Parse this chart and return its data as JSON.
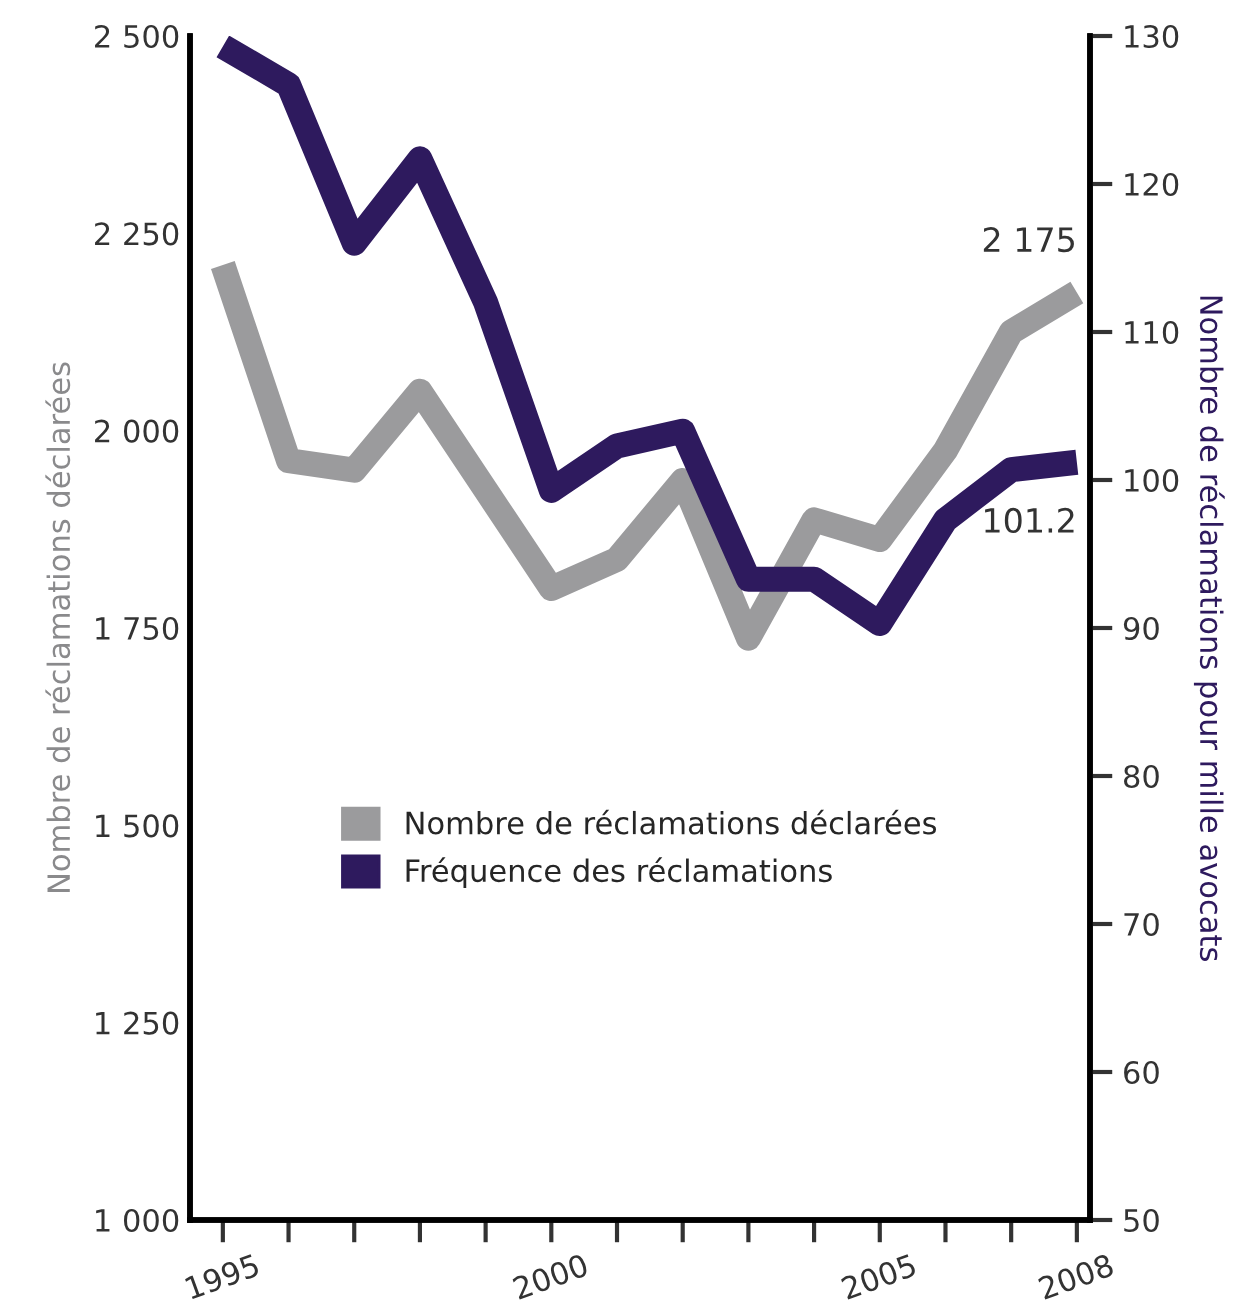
{
  "chart_data": {
    "type": "line",
    "x": [
      1995,
      1996,
      1997,
      1998,
      1999,
      2000,
      2001,
      2002,
      2003,
      2004,
      2005,
      2006,
      2007,
      2008
    ],
    "series": [
      {
        "name": "Nombre de réclamations déclarées",
        "color": "#9b9b9d",
        "values": [
          2210,
          1962,
          1950,
          2050,
          1925,
          1800,
          1837,
          1937,
          1737,
          1887,
          1862,
          1975,
          2125,
          2175
        ],
        "value_labels": [
          null,
          null,
          null,
          null,
          null,
          null,
          null,
          null,
          null,
          null,
          null,
          null,
          null,
          "2 175"
        ]
      },
      {
        "name": "Fréquence des réclamations",
        "color": "#2e1a5e",
        "axis": "y2",
        "values": [
          129.3,
          126.7,
          116,
          121.7,
          112,
          99.3,
          102.3,
          103.3,
          93.3,
          93.3,
          90.3,
          97.3,
          100.7,
          101.2
        ],
        "value_labels": [
          null,
          null,
          null,
          null,
          null,
          null,
          null,
          null,
          null,
          null,
          null,
          null,
          null,
          "101.2"
        ]
      }
    ],
    "ylabel": "Nombre de réclamations déclarées",
    "y2label": "Nombre de réclamations pour mille avocats",
    "xlim": [
      1994.5,
      2008.2
    ],
    "xticks": [
      1995,
      {
        "value": 1996,
        "label": null
      },
      {
        "value": 1997,
        "label": null
      },
      {
        "value": 1998,
        "label": null
      },
      {
        "value": 1999,
        "label": null
      },
      2000,
      {
        "value": 2001,
        "label": null
      },
      {
        "value": 2002,
        "label": null
      },
      {
        "value": 2003,
        "label": null
      },
      {
        "value": 2004,
        "label": null
      },
      2005,
      {
        "value": 2006,
        "label": null
      },
      {
        "value": 2007,
        "label": null
      },
      2008
    ],
    "ylim": [
      1000,
      2500
    ],
    "yticks": [
      {
        "value": 1000,
        "label": "1 000"
      },
      {
        "value": 1250,
        "label": "1 250"
      },
      {
        "value": 1500,
        "label": "1 500"
      },
      {
        "value": 1750,
        "label": "1 750"
      },
      {
        "value": 2000,
        "label": "2 000"
      },
      {
        "value": 2250,
        "label": "2 250"
      },
      {
        "value": 2500,
        "label": "2 500"
      }
    ],
    "y2lim": [
      50,
      130
    ],
    "y2ticks": [
      50,
      60,
      70,
      80,
      90,
      100,
      110,
      120,
      130
    ],
    "legend": "lower center",
    "grid": false,
    "marker": "none",
    "line_style": "solid"
  }
}
